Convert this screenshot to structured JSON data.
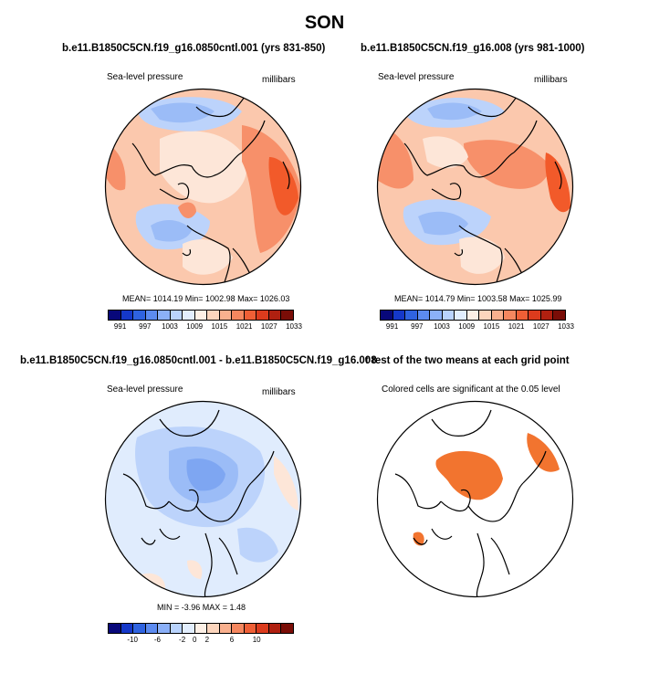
{
  "title": "SON",
  "panels": {
    "top_left": {
      "title": "b.e11.B1850C5CN.f19_g16.0850cntl.001 (yrs 831-850)",
      "left_label": "Sea-level pressure",
      "right_label": "millibars",
      "stats": "MEAN= 1014.19  Min= 1002.98  Max= 1026.03"
    },
    "top_right": {
      "title": "b.e11.B1850C5CN.f19_g16.008 (yrs 981-1000)",
      "left_label": "Sea-level pressure",
      "right_label": "millibars",
      "stats": "MEAN= 1014.79  Min= 1003.58  Max= 1025.99"
    },
    "bottom_left": {
      "title": "b.e11.B1850C5CN.f19_g16.0850cntl.001 - b.e11.B1850C5CN.f19_g16.008",
      "left_label": "Sea-level pressure",
      "right_label": "millibars",
      "stats": "MIN =  -3.96 MAX =   1.48"
    },
    "bottom_right": {
      "title": "t test of the two means at each grid point",
      "left_label": "Colored cells are significant at the 0.05 level"
    }
  },
  "colorbar_abs": {
    "colors": [
      "#08087a",
      "#1538c9",
      "#2f63e0",
      "#5c8bf0",
      "#8bb0f8",
      "#b9d3fd",
      "#e2eefe",
      "#fdf0e6",
      "#fcd5bd",
      "#f9b08e",
      "#f5875f",
      "#ef5f36",
      "#dc3b1d",
      "#b02010",
      "#7a0d07"
    ],
    "ticks": [
      "991",
      "997",
      "1003",
      "1009",
      "1015",
      "1021",
      "1027",
      "1033"
    ]
  },
  "colorbar_diff": {
    "colors": [
      "#08087a",
      "#1538c9",
      "#2f63e0",
      "#5c8bf0",
      "#8bb0f8",
      "#b9d3fd",
      "#e2eefe",
      "#fdf0e6",
      "#fcd5bd",
      "#f9b08e",
      "#f5875f",
      "#ef5f36",
      "#dc3b1d",
      "#b02010",
      "#7a0d07"
    ],
    "ticks": [
      "-10",
      "-6",
      "-2",
      "0",
      "2",
      "6",
      "10"
    ]
  },
  "map_colors": {
    "deep_red": "#f25a2a",
    "red": "#f7906a",
    "light_red": "#fbc8ad",
    "pale": "#fde6d8",
    "pale_blue": "#e0ecfd",
    "light_blue": "#bcd3fb",
    "blue": "#9bbcf7",
    "mid_blue": "#7ea6f2",
    "sig": "#f2742f"
  }
}
